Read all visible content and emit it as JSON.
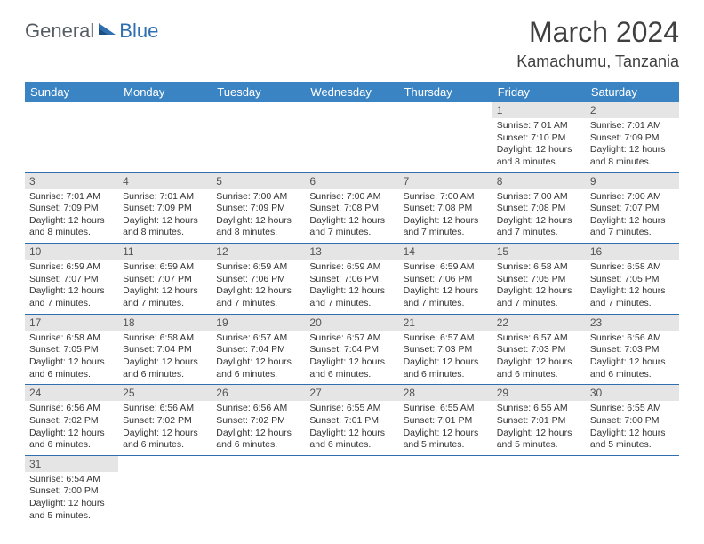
{
  "logo": {
    "part1": "General",
    "part2": "Blue"
  },
  "title": "March 2024",
  "location": "Kamachumu, Tanzania",
  "colors": {
    "header_bg": "#3b84c4",
    "row_border": "#2f6fb0",
    "daynum_bg": "#e5e5e5",
    "logo_gray": "#555c63",
    "logo_blue": "#2f6fb0"
  },
  "weekdays": [
    "Sunday",
    "Monday",
    "Tuesday",
    "Wednesday",
    "Thursday",
    "Friday",
    "Saturday"
  ],
  "weeks": [
    [
      null,
      null,
      null,
      null,
      null,
      {
        "n": "1",
        "sr": "7:01 AM",
        "ss": "7:10 PM",
        "dl": "12 hours and 8 minutes."
      },
      {
        "n": "2",
        "sr": "7:01 AM",
        "ss": "7:09 PM",
        "dl": "12 hours and 8 minutes."
      }
    ],
    [
      {
        "n": "3",
        "sr": "7:01 AM",
        "ss": "7:09 PM",
        "dl": "12 hours and 8 minutes."
      },
      {
        "n": "4",
        "sr": "7:01 AM",
        "ss": "7:09 PM",
        "dl": "12 hours and 8 minutes."
      },
      {
        "n": "5",
        "sr": "7:00 AM",
        "ss": "7:09 PM",
        "dl": "12 hours and 8 minutes."
      },
      {
        "n": "6",
        "sr": "7:00 AM",
        "ss": "7:08 PM",
        "dl": "12 hours and 7 minutes."
      },
      {
        "n": "7",
        "sr": "7:00 AM",
        "ss": "7:08 PM",
        "dl": "12 hours and 7 minutes."
      },
      {
        "n": "8",
        "sr": "7:00 AM",
        "ss": "7:08 PM",
        "dl": "12 hours and 7 minutes."
      },
      {
        "n": "9",
        "sr": "7:00 AM",
        "ss": "7:07 PM",
        "dl": "12 hours and 7 minutes."
      }
    ],
    [
      {
        "n": "10",
        "sr": "6:59 AM",
        "ss": "7:07 PM",
        "dl": "12 hours and 7 minutes."
      },
      {
        "n": "11",
        "sr": "6:59 AM",
        "ss": "7:07 PM",
        "dl": "12 hours and 7 minutes."
      },
      {
        "n": "12",
        "sr": "6:59 AM",
        "ss": "7:06 PM",
        "dl": "12 hours and 7 minutes."
      },
      {
        "n": "13",
        "sr": "6:59 AM",
        "ss": "7:06 PM",
        "dl": "12 hours and 7 minutes."
      },
      {
        "n": "14",
        "sr": "6:59 AM",
        "ss": "7:06 PM",
        "dl": "12 hours and 7 minutes."
      },
      {
        "n": "15",
        "sr": "6:58 AM",
        "ss": "7:05 PM",
        "dl": "12 hours and 7 minutes."
      },
      {
        "n": "16",
        "sr": "6:58 AM",
        "ss": "7:05 PM",
        "dl": "12 hours and 7 minutes."
      }
    ],
    [
      {
        "n": "17",
        "sr": "6:58 AM",
        "ss": "7:05 PM",
        "dl": "12 hours and 6 minutes."
      },
      {
        "n": "18",
        "sr": "6:58 AM",
        "ss": "7:04 PM",
        "dl": "12 hours and 6 minutes."
      },
      {
        "n": "19",
        "sr": "6:57 AM",
        "ss": "7:04 PM",
        "dl": "12 hours and 6 minutes."
      },
      {
        "n": "20",
        "sr": "6:57 AM",
        "ss": "7:04 PM",
        "dl": "12 hours and 6 minutes."
      },
      {
        "n": "21",
        "sr": "6:57 AM",
        "ss": "7:03 PM",
        "dl": "12 hours and 6 minutes."
      },
      {
        "n": "22",
        "sr": "6:57 AM",
        "ss": "7:03 PM",
        "dl": "12 hours and 6 minutes."
      },
      {
        "n": "23",
        "sr": "6:56 AM",
        "ss": "7:03 PM",
        "dl": "12 hours and 6 minutes."
      }
    ],
    [
      {
        "n": "24",
        "sr": "6:56 AM",
        "ss": "7:02 PM",
        "dl": "12 hours and 6 minutes."
      },
      {
        "n": "25",
        "sr": "6:56 AM",
        "ss": "7:02 PM",
        "dl": "12 hours and 6 minutes."
      },
      {
        "n": "26",
        "sr": "6:56 AM",
        "ss": "7:02 PM",
        "dl": "12 hours and 6 minutes."
      },
      {
        "n": "27",
        "sr": "6:55 AM",
        "ss": "7:01 PM",
        "dl": "12 hours and 6 minutes."
      },
      {
        "n": "28",
        "sr": "6:55 AM",
        "ss": "7:01 PM",
        "dl": "12 hours and 5 minutes."
      },
      {
        "n": "29",
        "sr": "6:55 AM",
        "ss": "7:01 PM",
        "dl": "12 hours and 5 minutes."
      },
      {
        "n": "30",
        "sr": "6:55 AM",
        "ss": "7:00 PM",
        "dl": "12 hours and 5 minutes."
      }
    ],
    [
      {
        "n": "31",
        "sr": "6:54 AM",
        "ss": "7:00 PM",
        "dl": "12 hours and 5 minutes."
      },
      null,
      null,
      null,
      null,
      null,
      null
    ]
  ],
  "labels": {
    "sunrise": "Sunrise: ",
    "sunset": "Sunset: ",
    "daylight": "Daylight: "
  }
}
